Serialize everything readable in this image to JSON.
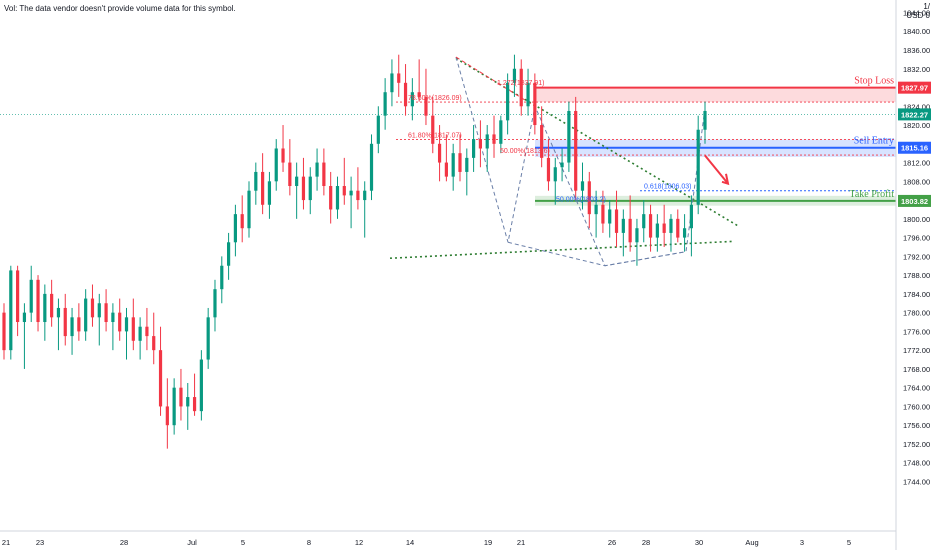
{
  "header": {
    "vol_note": "Vol: The data vendor doesn't provide volume data for this symbol.",
    "scale_label": "1/",
    "currency": "USD",
    "zero": "0"
  },
  "chart_data": {
    "type": "candlestick",
    "title": "",
    "xlabel": "",
    "ylabel": "",
    "ylim": [
      1742,
      1848
    ],
    "grid": false,
    "y_ticks": [
      1844,
      1840,
      1836,
      1832,
      1828,
      1824,
      1820,
      1816,
      1812,
      1808,
      1804,
      1800,
      1796,
      1792,
      1788,
      1784,
      1780,
      1776,
      1772,
      1768,
      1764,
      1760,
      1756,
      1752,
      1748,
      1744
    ],
    "x_ticks": [
      {
        "label": "21",
        "bar": 2
      },
      {
        "label": "23",
        "bar": 36
      },
      {
        "label": "28",
        "bar": 120
      },
      {
        "label": "Jul",
        "bar": 188
      },
      {
        "label": "5",
        "bar": 239
      },
      {
        "label": "8",
        "bar": 305
      },
      {
        "label": "12",
        "bar": 355
      },
      {
        "label": "14",
        "bar": 406
      },
      {
        "label": "19",
        "bar": 484
      },
      {
        "label": "21",
        "bar": 517
      },
      {
        "label": "26",
        "bar": 608
      },
      {
        "label": "28",
        "bar": 642
      },
      {
        "label": "30",
        "bar": 695
      },
      {
        "label": "Aug",
        "bar": 748
      },
      {
        "label": "3",
        "bar": 798
      },
      {
        "label": "5",
        "bar": 845
      }
    ],
    "price_labels": [
      {
        "label": "Stop Loss",
        "value": "1827.97",
        "color": "#f23645"
      },
      {
        "label": "",
        "value": "1822.27",
        "color": "#089981"
      },
      {
        "label": "Sell Entry",
        "value": "1815.16",
        "color": "#2962ff"
      },
      {
        "label": "Take Profit",
        "value": "1803.82",
        "color": "#43a047"
      }
    ],
    "zones": [
      {
        "name": "stop-zone",
        "from": 1824.9,
        "to": 1828.0,
        "color": "#f23645"
      },
      {
        "name": "entry-zone",
        "from": 1813.2,
        "to": 1816.9,
        "color": "#2962ff"
      },
      {
        "name": "profit-zone",
        "from": 1802.8,
        "to": 1804.9,
        "color": "#43a047"
      }
    ],
    "fib_labels": [
      {
        "text": "78.60%(1826.09)",
        "price": 1824.9,
        "color": "#f23645"
      },
      {
        "text": "1.272(1837.91)",
        "price": 1828.1,
        "color": "#f23645"
      },
      {
        "text": "61.80%(1817.07)",
        "price": 1816.9,
        "color": "#f23645"
      },
      {
        "text": "50.00%(1813.6)",
        "price": 1813.6,
        "color": "#f23645"
      },
      {
        "text": "50.00%(1803.2)",
        "price": 1803.3,
        "color": "#2962ff"
      },
      {
        "text": "0.618(1806.03)",
        "price": 1806.0,
        "color": "#2962ff"
      }
    ],
    "ohlc": [
      [
        1780,
        1782,
        1770,
        1772
      ],
      [
        1772,
        1790,
        1770,
        1789
      ],
      [
        1789,
        1790,
        1775,
        1778
      ],
      [
        1778,
        1782,
        1768,
        1780
      ],
      [
        1780,
        1790,
        1778,
        1787
      ],
      [
        1787,
        1788,
        1776,
        1778
      ],
      [
        1778,
        1786,
        1774,
        1784
      ],
      [
        1784,
        1787,
        1777,
        1779
      ],
      [
        1779,
        1783,
        1772,
        1781
      ],
      [
        1781,
        1784,
        1773,
        1775
      ],
      [
        1775,
        1781,
        1771,
        1779
      ],
      [
        1779,
        1782,
        1774,
        1776
      ],
      [
        1776,
        1785,
        1774,
        1783
      ],
      [
        1783,
        1786,
        1777,
        1779
      ],
      [
        1779,
        1784,
        1773,
        1782
      ],
      [
        1782,
        1785,
        1776,
        1778
      ],
      [
        1778,
        1782,
        1772,
        1780
      ],
      [
        1780,
        1783,
        1774,
        1776
      ],
      [
        1776,
        1781,
        1770,
        1779
      ],
      [
        1779,
        1783,
        1772,
        1774
      ],
      [
        1774,
        1779,
        1770,
        1777
      ],
      [
        1777,
        1781,
        1772,
        1775
      ],
      [
        1775,
        1780,
        1769,
        1772
      ],
      [
        1772,
        1777,
        1758,
        1760
      ],
      [
        1760,
        1766,
        1751,
        1756
      ],
      [
        1756,
        1766,
        1754,
        1764
      ],
      [
        1764,
        1768,
        1757,
        1760
      ],
      [
        1760,
        1765,
        1755,
        1762
      ],
      [
        1762,
        1767,
        1758,
        1759
      ],
      [
        1759,
        1772,
        1757,
        1770
      ],
      [
        1770,
        1781,
        1768,
        1779
      ],
      [
        1779,
        1787,
        1776,
        1785
      ],
      [
        1785,
        1792,
        1782,
        1790
      ],
      [
        1790,
        1797,
        1787,
        1795
      ],
      [
        1795,
        1803,
        1792,
        1801
      ],
      [
        1801,
        1805,
        1795,
        1798
      ],
      [
        1798,
        1808,
        1796,
        1806
      ],
      [
        1806,
        1812,
        1803,
        1810
      ],
      [
        1810,
        1814,
        1801,
        1803
      ],
      [
        1803,
        1810,
        1800,
        1808
      ],
      [
        1808,
        1817,
        1806,
        1815
      ],
      [
        1815,
        1820,
        1810,
        1812
      ],
      [
        1812,
        1817,
        1805,
        1807
      ],
      [
        1807,
        1812,
        1800,
        1809
      ],
      [
        1809,
        1813,
        1802,
        1804
      ],
      [
        1804,
        1811,
        1801,
        1809
      ],
      [
        1809,
        1815,
        1806,
        1812
      ],
      [
        1812,
        1815,
        1805,
        1807
      ],
      [
        1807,
        1810,
        1799,
        1802
      ],
      [
        1802,
        1809,
        1800,
        1807
      ],
      [
        1807,
        1813,
        1803,
        1805
      ],
      [
        1805,
        1809,
        1798,
        1806
      ],
      [
        1806,
        1811,
        1802,
        1804
      ],
      [
        1804,
        1808,
        1796,
        1806
      ],
      [
        1806,
        1818,
        1804,
        1816
      ],
      [
        1816,
        1824,
        1814,
        1822
      ],
      [
        1822,
        1830,
        1819,
        1827
      ],
      [
        1827,
        1834,
        1824,
        1831
      ],
      [
        1831,
        1835,
        1826,
        1829
      ],
      [
        1829,
        1833,
        1822,
        1824
      ],
      [
        1824,
        1830,
        1821,
        1827
      ],
      [
        1827,
        1834,
        1825,
        1826
      ],
      [
        1826,
        1832,
        1820,
        1822
      ],
      [
        1822,
        1826,
        1814,
        1816
      ],
      [
        1816,
        1820,
        1808,
        1812
      ],
      [
        1812,
        1818,
        1808,
        1809
      ],
      [
        1809,
        1816,
        1806,
        1814
      ],
      [
        1814,
        1818,
        1808,
        1810
      ],
      [
        1810,
        1815,
        1805,
        1813
      ],
      [
        1813,
        1820,
        1810,
        1817
      ],
      [
        1817,
        1821,
        1811,
        1815
      ],
      [
        1815,
        1820,
        1810,
        1818
      ],
      [
        1818,
        1822,
        1813,
        1816
      ],
      [
        1816,
        1822,
        1814,
        1821
      ],
      [
        1821,
        1831,
        1818,
        1829
      ],
      [
        1829,
        1835,
        1826,
        1832
      ],
      [
        1832,
        1834,
        1822,
        1824
      ],
      [
        1824,
        1832,
        1822,
        1829
      ],
      [
        1829,
        1831,
        1818,
        1820
      ],
      [
        1820,
        1824,
        1811,
        1813
      ],
      [
        1813,
        1817,
        1806,
        1808
      ],
      [
        1808,
        1813,
        1803,
        1811
      ],
      [
        1811,
        1815,
        1808,
        1812
      ],
      [
        1812,
        1825,
        1810,
        1823
      ],
      [
        1823,
        1826,
        1804,
        1806
      ],
      [
        1806,
        1812,
        1802,
        1808
      ],
      [
        1808,
        1810,
        1798,
        1801
      ],
      [
        1801,
        1806,
        1796,
        1803
      ],
      [
        1803,
        1806,
        1797,
        1799
      ],
      [
        1799,
        1804,
        1796,
        1802
      ],
      [
        1802,
        1806,
        1794,
        1797
      ],
      [
        1797,
        1802,
        1792,
        1800
      ],
      [
        1800,
        1805,
        1793,
        1795
      ],
      [
        1795,
        1800,
        1790,
        1798
      ],
      [
        1798,
        1804,
        1795,
        1801
      ],
      [
        1801,
        1803,
        1793,
        1796
      ],
      [
        1796,
        1801,
        1793,
        1799
      ],
      [
        1799,
        1803,
        1794,
        1797
      ],
      [
        1797,
        1801,
        1793,
        1800
      ],
      [
        1800,
        1802,
        1795,
        1796
      ],
      [
        1796,
        1801,
        1793,
        1798
      ],
      [
        1798,
        1805,
        1792,
        1803
      ],
      [
        1803,
        1822,
        1801,
        1819
      ],
      [
        1819,
        1825,
        1816,
        1823
      ]
    ]
  }
}
